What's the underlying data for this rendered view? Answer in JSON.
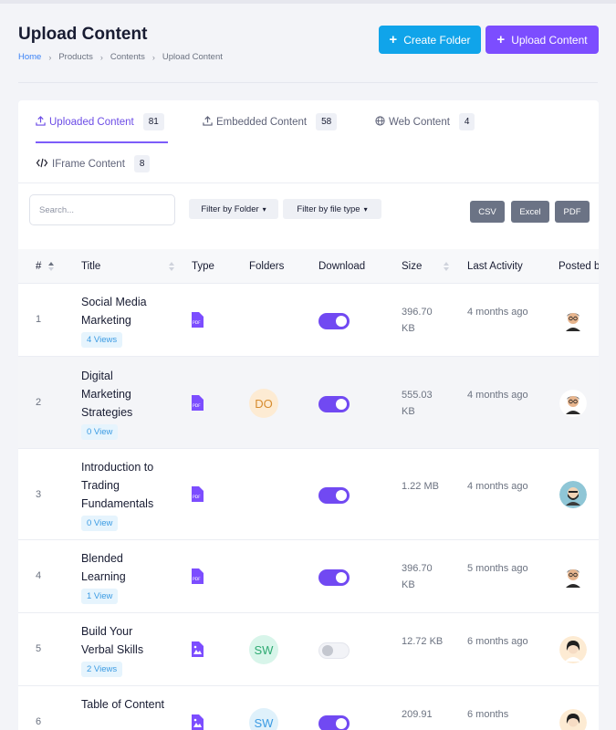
{
  "header": {
    "title": "Upload Content",
    "breadcrumb": [
      "Home",
      "Products",
      "Contents",
      "Upload Content"
    ],
    "create_folder_label": "Create Folder",
    "upload_content_label": "Upload Content"
  },
  "tabs": [
    {
      "label": "Uploaded Content",
      "count": "81",
      "icon": "upload-icon",
      "active": true
    },
    {
      "label": "Embedded Content",
      "count": "58",
      "icon": "upload-icon",
      "active": false
    },
    {
      "label": "Web Content",
      "count": "4",
      "icon": "globe-icon",
      "active": false
    },
    {
      "label": "IFrame Content",
      "count": "8",
      "icon": "code-icon",
      "active": false
    }
  ],
  "toolbar": {
    "search_placeholder": "Search...",
    "filter_folder_label": "Filter by Folder",
    "filter_type_label": "Filter by file type",
    "csv_label": "CSV",
    "excel_label": "Excel",
    "pdf_label": "PDF"
  },
  "table": {
    "headers": {
      "num": "#",
      "title": "Title",
      "type": "Type",
      "folders": "Folders",
      "download": "Download",
      "size": "Size",
      "last_activity": "Last Activity",
      "posted_by": "Posted b"
    },
    "rows": [
      {
        "num": "1",
        "title": "Social Media Marketing",
        "views": "4 Views",
        "type": "pdf",
        "folder": "",
        "download": true,
        "size": "396.70 KB",
        "activity": "4 months ago"
      },
      {
        "num": "2",
        "title": "Digital Marketing Strategies",
        "views": "0 View",
        "type": "pdf",
        "folder": "DO",
        "download": true,
        "size": "555.03 KB",
        "activity": "4 months ago"
      },
      {
        "num": "3",
        "title": "Introduction to Trading Fundamentals",
        "views": "0 View",
        "type": "pdf",
        "folder": "",
        "download": true,
        "size": "1.22 MB",
        "activity": "4 months ago"
      },
      {
        "num": "4",
        "title": "Blended Learning",
        "views": "1 View",
        "type": "pdf",
        "folder": "",
        "download": true,
        "size": "396.70 KB",
        "activity": "5 months ago"
      },
      {
        "num": "5",
        "title": "Build Your Verbal Skills",
        "views": "2 Views",
        "type": "image",
        "folder": "SW",
        "download": false,
        "size": "12.72 KB",
        "activity": "6 months ago"
      },
      {
        "num": "6",
        "title": "Table of Content",
        "views": "",
        "type": "image",
        "folder": "SW",
        "download": true,
        "size": "209.91",
        "activity": "6 months"
      }
    ]
  },
  "colors": {
    "primary": "#7c4dff",
    "info": "#10a4ea",
    "folder_do_bg": "#fdebd3",
    "folder_sw_bg": "#d8f5ea"
  }
}
